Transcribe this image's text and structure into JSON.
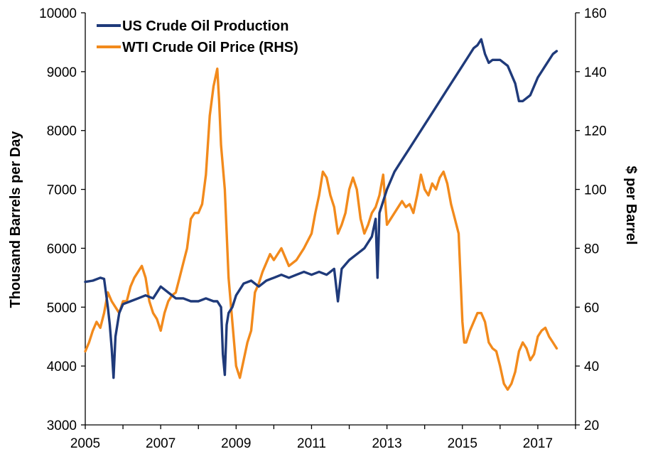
{
  "chart_data": {
    "type": "line",
    "title": "",
    "xlabel": "",
    "ylabel_left": "Thousand Barrels per Day",
    "ylabel_right": "$ per Barrel",
    "xlim": [
      2005,
      2018
    ],
    "ylim_left": [
      3000,
      10000
    ],
    "ylim_right": [
      20,
      160
    ],
    "x_ticks": [
      "2005",
      "2007",
      "2009",
      "2011",
      "2013",
      "2015",
      "2017"
    ],
    "y_ticks_left": [
      "3000",
      "4000",
      "5000",
      "6000",
      "7000",
      "8000",
      "9000",
      "10000"
    ],
    "y_ticks_right": [
      "20",
      "40",
      "60",
      "80",
      "100",
      "120",
      "140",
      "160"
    ],
    "grid": false,
    "legend_placement": "top-left",
    "colors": {
      "production": "#1f3a7a",
      "price": "#f28a1c"
    },
    "series": [
      {
        "name": "US Crude Oil Production",
        "axis": "left",
        "x": [
          2005.0,
          2005.2,
          2005.4,
          2005.5,
          2005.6,
          2005.65,
          2005.7,
          2005.75,
          2005.8,
          2005.9,
          2006.0,
          2006.2,
          2006.4,
          2006.6,
          2006.8,
          2007.0,
          2007.2,
          2007.4,
          2007.6,
          2007.8,
          2008.0,
          2008.2,
          2008.4,
          2008.5,
          2008.6,
          2008.65,
          2008.7,
          2008.75,
          2008.8,
          2008.9,
          2009.0,
          2009.1,
          2009.2,
          2009.4,
          2009.6,
          2009.8,
          2010.0,
          2010.2,
          2010.4,
          2010.6,
          2010.8,
          2011.0,
          2011.2,
          2011.4,
          2011.6,
          2011.7,
          2011.8,
          2012.0,
          2012.2,
          2012.4,
          2012.6,
          2012.7,
          2012.75,
          2012.8,
          2013.0,
          2013.2,
          2013.4,
          2013.6,
          2013.8,
          2014.0,
          2014.2,
          2014.4,
          2014.6,
          2014.8,
          2015.0,
          2015.2,
          2015.3,
          2015.4,
          2015.5,
          2015.6,
          2015.7,
          2015.8,
          2016.0,
          2016.2,
          2016.4,
          2016.5,
          2016.6,
          2016.8,
          2017.0,
          2017.2,
          2017.4,
          2017.5
        ],
        "y": [
          5430,
          5450,
          5500,
          5480,
          5000,
          4700,
          4300,
          3800,
          4500,
          4900,
          5050,
          5100,
          5150,
          5200,
          5150,
          5350,
          5250,
          5150,
          5150,
          5100,
          5100,
          5150,
          5100,
          5100,
          5000,
          4200,
          3850,
          4700,
          4900,
          5000,
          5200,
          5300,
          5400,
          5450,
          5350,
          5450,
          5500,
          5550,
          5500,
          5550,
          5600,
          5550,
          5600,
          5550,
          5650,
          5100,
          5650,
          5800,
          5900,
          6000,
          6200,
          6500,
          5500,
          6600,
          7000,
          7300,
          7500,
          7700,
          7900,
          8100,
          8300,
          8500,
          8700,
          8900,
          9100,
          9300,
          9400,
          9450,
          9550,
          9300,
          9150,
          9200,
          9200,
          9100,
          8800,
          8500,
          8500,
          8600,
          8900,
          9100,
          9300,
          9350
        ]
      },
      {
        "name": "WTI Crude Oil Price (RHS)",
        "axis": "right",
        "x": [
          2005.0,
          2005.1,
          2005.2,
          2005.3,
          2005.4,
          2005.5,
          2005.6,
          2005.7,
          2005.8,
          2005.9,
          2006.0,
          2006.1,
          2006.2,
          2006.3,
          2006.4,
          2006.5,
          2006.6,
          2006.7,
          2006.8,
          2006.9,
          2007.0,
          2007.1,
          2007.2,
          2007.3,
          2007.4,
          2007.5,
          2007.6,
          2007.7,
          2007.8,
          2007.9,
          2008.0,
          2008.1,
          2008.2,
          2008.3,
          2008.4,
          2008.5,
          2008.55,
          2008.6,
          2008.7,
          2008.8,
          2008.9,
          2009.0,
          2009.1,
          2009.2,
          2009.3,
          2009.4,
          2009.5,
          2009.6,
          2009.7,
          2009.8,
          2009.9,
          2010.0,
          2010.2,
          2010.4,
          2010.6,
          2010.8,
          2011.0,
          2011.1,
          2011.2,
          2011.3,
          2011.4,
          2011.5,
          2011.6,
          2011.7,
          2011.8,
          2011.9,
          2012.0,
          2012.1,
          2012.2,
          2012.3,
          2012.4,
          2012.5,
          2012.6,
          2012.7,
          2012.8,
          2012.9,
          2013.0,
          2013.2,
          2013.4,
          2013.5,
          2013.6,
          2013.7,
          2013.8,
          2013.9,
          2014.0,
          2014.1,
          2014.2,
          2014.3,
          2014.4,
          2014.5,
          2014.6,
          2014.7,
          2014.8,
          2014.9,
          2015.0,
          2015.05,
          2015.1,
          2015.2,
          2015.3,
          2015.4,
          2015.5,
          2015.6,
          2015.7,
          2015.8,
          2015.9,
          2016.0,
          2016.1,
          2016.2,
          2016.3,
          2016.4,
          2016.5,
          2016.6,
          2016.7,
          2016.8,
          2016.9,
          2017.0,
          2017.1,
          2017.2,
          2017.3,
          2017.4,
          2017.5
        ],
        "y": [
          45,
          48,
          52,
          55,
          53,
          58,
          65,
          62,
          60,
          58,
          62,
          62,
          67,
          70,
          72,
          74,
          70,
          62,
          58,
          56,
          52,
          58,
          62,
          64,
          65,
          70,
          75,
          80,
          90,
          92,
          92,
          95,
          105,
          125,
          135,
          141,
          130,
          115,
          100,
          70,
          55,
          40,
          36,
          42,
          48,
          52,
          65,
          68,
          72,
          75,
          78,
          76,
          80,
          74,
          76,
          80,
          85,
          92,
          98,
          106,
          104,
          98,
          94,
          85,
          88,
          92,
          100,
          104,
          100,
          90,
          85,
          88,
          92,
          94,
          98,
          105,
          88,
          92,
          96,
          94,
          95,
          92,
          98,
          105,
          100,
          98,
          102,
          100,
          104,
          106,
          102,
          95,
          90,
          85,
          55,
          48,
          48,
          52,
          55,
          58,
          58,
          55,
          48,
          46,
          45,
          40,
          34,
          32,
          34,
          38,
          45,
          48,
          46,
          42,
          44,
          50,
          52,
          53,
          50,
          48,
          46
        ]
      }
    ]
  }
}
